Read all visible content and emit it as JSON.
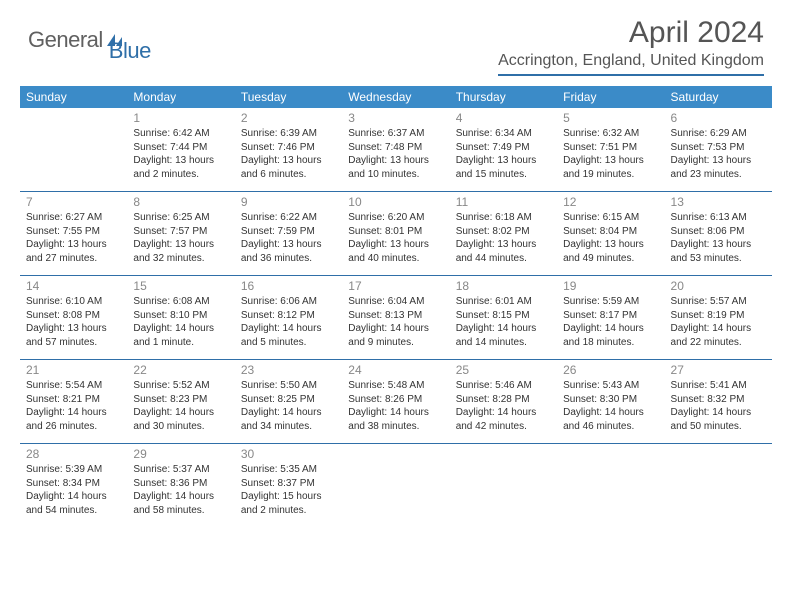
{
  "logo": {
    "text1": "General",
    "text2": "Blue"
  },
  "title": "April 2024",
  "location": "Accrington, England, United Kingdom",
  "colors": {
    "header_bg": "#3b8bc8",
    "accent": "#2f6fa8",
    "logo_gray": "#606060",
    "text": "#333333",
    "daynum": "#888888"
  },
  "day_headers": [
    "Sunday",
    "Monday",
    "Tuesday",
    "Wednesday",
    "Thursday",
    "Friday",
    "Saturday"
  ],
  "weeks": [
    [
      null,
      {
        "n": "1",
        "sr": "6:42 AM",
        "ss": "7:44 PM",
        "dl": "13 hours and 2 minutes."
      },
      {
        "n": "2",
        "sr": "6:39 AM",
        "ss": "7:46 PM",
        "dl": "13 hours and 6 minutes."
      },
      {
        "n": "3",
        "sr": "6:37 AM",
        "ss": "7:48 PM",
        "dl": "13 hours and 10 minutes."
      },
      {
        "n": "4",
        "sr": "6:34 AM",
        "ss": "7:49 PM",
        "dl": "13 hours and 15 minutes."
      },
      {
        "n": "5",
        "sr": "6:32 AM",
        "ss": "7:51 PM",
        "dl": "13 hours and 19 minutes."
      },
      {
        "n": "6",
        "sr": "6:29 AM",
        "ss": "7:53 PM",
        "dl": "13 hours and 23 minutes."
      }
    ],
    [
      {
        "n": "7",
        "sr": "6:27 AM",
        "ss": "7:55 PM",
        "dl": "13 hours and 27 minutes."
      },
      {
        "n": "8",
        "sr": "6:25 AM",
        "ss": "7:57 PM",
        "dl": "13 hours and 32 minutes."
      },
      {
        "n": "9",
        "sr": "6:22 AM",
        "ss": "7:59 PM",
        "dl": "13 hours and 36 minutes."
      },
      {
        "n": "10",
        "sr": "6:20 AM",
        "ss": "8:01 PM",
        "dl": "13 hours and 40 minutes."
      },
      {
        "n": "11",
        "sr": "6:18 AM",
        "ss": "8:02 PM",
        "dl": "13 hours and 44 minutes."
      },
      {
        "n": "12",
        "sr": "6:15 AM",
        "ss": "8:04 PM",
        "dl": "13 hours and 49 minutes."
      },
      {
        "n": "13",
        "sr": "6:13 AM",
        "ss": "8:06 PM",
        "dl": "13 hours and 53 minutes."
      }
    ],
    [
      {
        "n": "14",
        "sr": "6:10 AM",
        "ss": "8:08 PM",
        "dl": "13 hours and 57 minutes."
      },
      {
        "n": "15",
        "sr": "6:08 AM",
        "ss": "8:10 PM",
        "dl": "14 hours and 1 minute."
      },
      {
        "n": "16",
        "sr": "6:06 AM",
        "ss": "8:12 PM",
        "dl": "14 hours and 5 minutes."
      },
      {
        "n": "17",
        "sr": "6:04 AM",
        "ss": "8:13 PM",
        "dl": "14 hours and 9 minutes."
      },
      {
        "n": "18",
        "sr": "6:01 AM",
        "ss": "8:15 PM",
        "dl": "14 hours and 14 minutes."
      },
      {
        "n": "19",
        "sr": "5:59 AM",
        "ss": "8:17 PM",
        "dl": "14 hours and 18 minutes."
      },
      {
        "n": "20",
        "sr": "5:57 AM",
        "ss": "8:19 PM",
        "dl": "14 hours and 22 minutes."
      }
    ],
    [
      {
        "n": "21",
        "sr": "5:54 AM",
        "ss": "8:21 PM",
        "dl": "14 hours and 26 minutes."
      },
      {
        "n": "22",
        "sr": "5:52 AM",
        "ss": "8:23 PM",
        "dl": "14 hours and 30 minutes."
      },
      {
        "n": "23",
        "sr": "5:50 AM",
        "ss": "8:25 PM",
        "dl": "14 hours and 34 minutes."
      },
      {
        "n": "24",
        "sr": "5:48 AM",
        "ss": "8:26 PM",
        "dl": "14 hours and 38 minutes."
      },
      {
        "n": "25",
        "sr": "5:46 AM",
        "ss": "8:28 PM",
        "dl": "14 hours and 42 minutes."
      },
      {
        "n": "26",
        "sr": "5:43 AM",
        "ss": "8:30 PM",
        "dl": "14 hours and 46 minutes."
      },
      {
        "n": "27",
        "sr": "5:41 AM",
        "ss": "8:32 PM",
        "dl": "14 hours and 50 minutes."
      }
    ],
    [
      {
        "n": "28",
        "sr": "5:39 AM",
        "ss": "8:34 PM",
        "dl": "14 hours and 54 minutes."
      },
      {
        "n": "29",
        "sr": "5:37 AM",
        "ss": "8:36 PM",
        "dl": "14 hours and 58 minutes."
      },
      {
        "n": "30",
        "sr": "5:35 AM",
        "ss": "8:37 PM",
        "dl": "15 hours and 2 minutes."
      },
      null,
      null,
      null,
      null
    ]
  ],
  "labels": {
    "sunrise": "Sunrise:",
    "sunset": "Sunset:",
    "daylight": "Daylight:"
  }
}
